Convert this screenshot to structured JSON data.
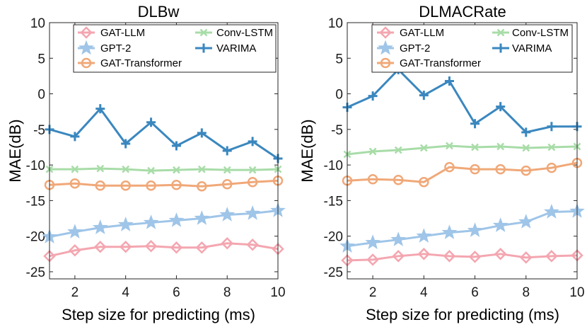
{
  "chart_data": [
    {
      "type": "line",
      "title": "DLBw",
      "xlabel": "Step size for predicting (ms)",
      "ylabel": "MAE(dB)",
      "x": [
        1,
        2,
        3,
        4,
        5,
        6,
        7,
        8,
        9,
        10
      ],
      "xlim": [
        1,
        10
      ],
      "ylim": [
        -26,
        10
      ],
      "xticks": [
        "2",
        "4",
        "6",
        "8",
        "10"
      ],
      "yticks": [
        "10",
        "5",
        "0",
        "-5",
        "-10",
        "-15",
        "-20",
        "-25"
      ],
      "series": [
        {
          "name": "GAT-LLM",
          "color": "#f4a6b0",
          "marker": "diamond",
          "values": [
            -22.8,
            -22.0,
            -21.5,
            -21.5,
            -21.4,
            -21.6,
            -21.6,
            -21.0,
            -21.2,
            -21.8
          ]
        },
        {
          "name": "GPT-2",
          "color": "#9fc5e8",
          "marker": "star",
          "values": [
            -20.1,
            -19.4,
            -18.8,
            -18.4,
            -18.1,
            -17.8,
            -17.5,
            -17.0,
            -16.8,
            -16.4
          ]
        },
        {
          "name": "GAT-Transformer",
          "color": "#f0a878",
          "marker": "circle",
          "values": [
            -12.8,
            -12.6,
            -12.9,
            -12.9,
            -12.9,
            -12.8,
            -13.0,
            -12.7,
            -12.4,
            -12.2
          ]
        },
        {
          "name": "Conv-LSTM",
          "color": "#a8dca8",
          "marker": "x",
          "values": [
            -10.6,
            -10.6,
            -10.5,
            -10.6,
            -10.8,
            -10.7,
            -10.6,
            -10.7,
            -10.7,
            -10.6
          ]
        },
        {
          "name": "VARIMA",
          "color": "#3a87bf",
          "marker": "plus",
          "values": [
            -5.0,
            -6.0,
            -2.1,
            -7.0,
            -4.0,
            -7.3,
            -5.5,
            -8.0,
            -6.7,
            -9.1
          ]
        }
      ]
    },
    {
      "type": "line",
      "title": "DLMACRate",
      "xlabel": "Step size for predicting (ms)",
      "ylabel": "MAE(dB)",
      "x": [
        1,
        2,
        3,
        4,
        5,
        6,
        7,
        8,
        9,
        10
      ],
      "xlim": [
        1,
        10
      ],
      "ylim": [
        -26,
        10
      ],
      "xticks": [
        "2",
        "4",
        "6",
        "8",
        "10"
      ],
      "yticks": [
        "10",
        "5",
        "0",
        "-5",
        "-10",
        "-15",
        "-20",
        "-25"
      ],
      "series": [
        {
          "name": "GAT-LLM",
          "color": "#f4a6b0",
          "marker": "diamond",
          "values": [
            -23.4,
            -23.3,
            -22.8,
            -22.5,
            -22.8,
            -22.9,
            -22.5,
            -23.0,
            -22.8,
            -22.7
          ]
        },
        {
          "name": "GPT-2",
          "color": "#9fc5e8",
          "marker": "star",
          "values": [
            -21.4,
            -20.9,
            -20.5,
            -20.0,
            -19.5,
            -19.2,
            -18.5,
            -18.0,
            -16.6,
            -16.5
          ]
        },
        {
          "name": "GAT-Transformer",
          "color": "#f0a878",
          "marker": "circle",
          "values": [
            -12.2,
            -12.0,
            -12.1,
            -12.4,
            -10.3,
            -10.6,
            -10.6,
            -10.8,
            -10.4,
            -9.7
          ]
        },
        {
          "name": "Conv-LSTM",
          "color": "#a8dca8",
          "marker": "x",
          "values": [
            -8.5,
            -8.1,
            -7.9,
            -7.6,
            -7.3,
            -7.5,
            -7.4,
            -7.6,
            -7.5,
            -7.4
          ]
        },
        {
          "name": "VARIMA",
          "color": "#3a87bf",
          "marker": "plus",
          "values": [
            -1.9,
            -0.3,
            3.4,
            -0.2,
            1.8,
            -4.2,
            -1.8,
            -5.4,
            -4.6,
            -4.6
          ]
        }
      ]
    }
  ]
}
